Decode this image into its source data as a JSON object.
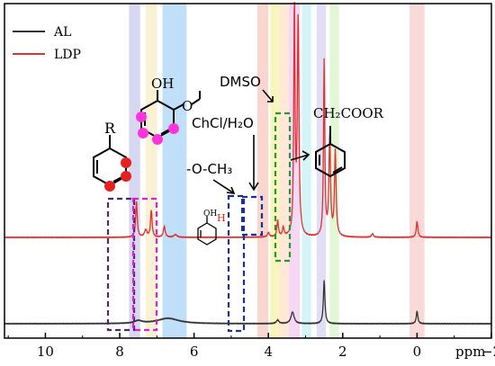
{
  "chart_data": {
    "type": "line",
    "xlabel": "ppm",
    "xlim": [
      11.1,
      -2
    ],
    "ticks": [
      10,
      8,
      6,
      4,
      2,
      0,
      -2
    ],
    "tick_labels": [
      "10",
      "8",
      "6",
      "4",
      "2",
      "0",
      "−2"
    ],
    "legend_position": "top-left",
    "series": [
      {
        "name": "AL",
        "color": "#333333",
        "baseline": 0,
        "peaks": [
          {
            "x": 7.5,
            "h": 3,
            "w": 0.12
          },
          {
            "x": 6.7,
            "h": 6,
            "w": 0.35
          },
          {
            "x": 3.75,
            "h": 4,
            "w": 0.04
          },
          {
            "x": 3.35,
            "h": 13,
            "w": 0.05
          },
          {
            "x": 2.5,
            "h": 48,
            "w": 0.025
          },
          {
            "x": 0.0,
            "h": 14,
            "w": 0.025
          }
        ]
      },
      {
        "name": "LDP",
        "color": "#e03030",
        "baseline": 96,
        "peaks": [
          {
            "x": 7.55,
            "h": 40,
            "w": 0.025
          },
          {
            "x": 7.3,
            "h": 8,
            "w": 0.04
          },
          {
            "x": 7.15,
            "h": 30,
            "w": 0.025
          },
          {
            "x": 6.8,
            "h": 12,
            "w": 0.03
          },
          {
            "x": 6.5,
            "h": 3,
            "w": 0.05
          },
          {
            "x": 4.0,
            "h": 5,
            "w": 0.03
          },
          {
            "x": 3.75,
            "h": 18,
            "w": 0.025
          },
          {
            "x": 3.6,
            "h": 10,
            "w": 0.025
          },
          {
            "x": 3.3,
            "h": 255,
            "w": 0.02
          },
          {
            "x": 3.2,
            "h": 240,
            "w": 0.025
          },
          {
            "x": 2.5,
            "h": 195,
            "w": 0.02
          },
          {
            "x": 2.35,
            "h": 110,
            "w": 0.025
          },
          {
            "x": 2.2,
            "h": 95,
            "w": 0.025
          },
          {
            "x": 1.2,
            "h": 4,
            "w": 0.03
          },
          {
            "x": 0.0,
            "h": 18,
            "w": 0.025
          }
        ]
      }
    ],
    "bands": [
      {
        "x1": 7.75,
        "x2": 7.45,
        "color": "#c9c9ec"
      },
      {
        "x1": 7.3,
        "x2": 7.0,
        "color": "#f5ecc4"
      },
      {
        "x1": 6.85,
        "x2": 6.2,
        "color": "#a9d6f5"
      },
      {
        "x1": 4.3,
        "x2": 4.0,
        "color": "#f7c8c0"
      },
      {
        "x1": 3.95,
        "x2": 3.7,
        "color": "#f6f3a6"
      },
      {
        "x1": 3.7,
        "x2": 3.45,
        "color": "#ffe2c8"
      },
      {
        "x1": 3.45,
        "x2": 3.15,
        "color": "#f3c9f0"
      },
      {
        "x1": 3.1,
        "x2": 2.85,
        "color": "#c6f2f5"
      },
      {
        "x1": 2.7,
        "x2": 2.45,
        "color": "#d6d4f0"
      },
      {
        "x1": 2.35,
        "x2": 2.1,
        "color": "#d7f4c8"
      },
      {
        "x1": 0.2,
        "x2": -0.2,
        "color": "#f8cccc"
      }
    ],
    "annotations": {
      "dmso": "DMSO",
      "chcl": "ChCl/H₂O",
      "och3": "-O-CH₃",
      "ch2coor": "CH₂COOR",
      "r": "R",
      "oh1": "OH",
      "oh2": "OH"
    }
  }
}
